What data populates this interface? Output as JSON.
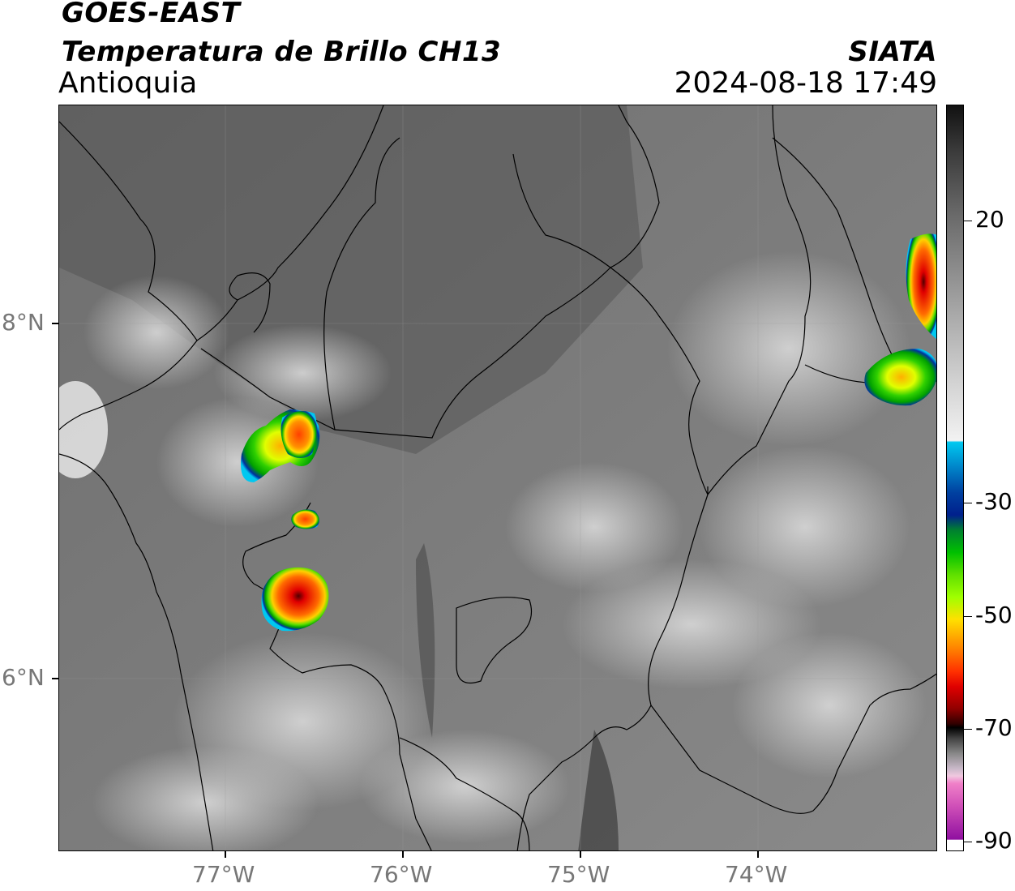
{
  "header": {
    "satellite": "GOES-EAST",
    "product": "Temperatura de Brillo CH13",
    "region": "Antioquia",
    "agency": "SIATA",
    "timestamp": "2024-08-18 17:49"
  },
  "axes": {
    "lon_labels": [
      "77°W",
      "76°W",
      "75°W",
      "74°W"
    ],
    "lat_labels": [
      "8°N",
      "6°N"
    ]
  },
  "colorbar": {
    "labels": [
      "20",
      "-30",
      "-50",
      "-70",
      "-90"
    ],
    "colors": {
      "gray_top": "#111111",
      "gray_mid": "#888888",
      "white": "#f2f2f2",
      "cyan": "#00c8f0",
      "blue": "#00208c",
      "green": "#00c000",
      "lime": "#a0ff00",
      "yellow": "#ffe000",
      "orange": "#ff8000",
      "red": "#e00000",
      "darkred": "#600000",
      "black": "#000000",
      "pink": "#f080c8",
      "purple": "#9010a0"
    }
  }
}
